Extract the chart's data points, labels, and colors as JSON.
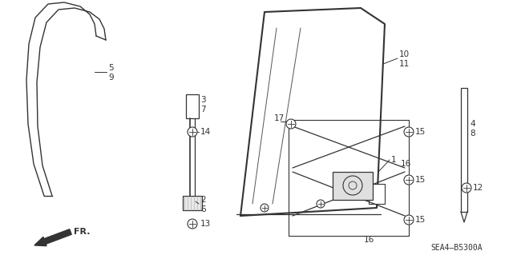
{
  "background_color": "#ffffff",
  "diagram_code": "SEA4–B5300A",
  "line_color": "#333333",
  "figsize": [
    6.4,
    3.19
  ],
  "dpi": 100
}
